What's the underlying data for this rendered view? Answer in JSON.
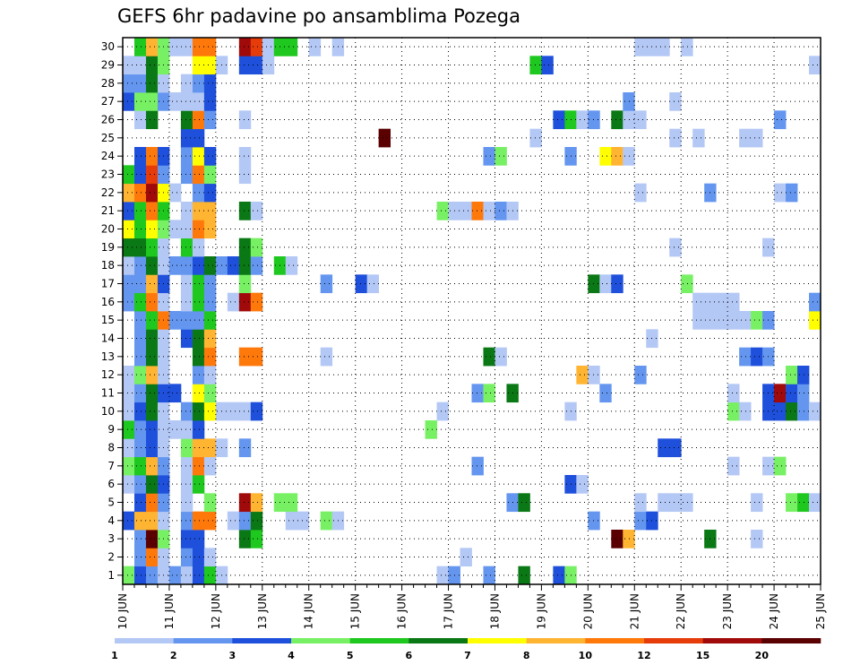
{
  "chart_data": {
    "type": "heatmap",
    "title": "GEFS 6hr padavine po ansamblima Pozega",
    "xlabel": "",
    "ylabel": "",
    "x_ticks": [
      "10 JUN",
      "11 JUN",
      "12 JUN",
      "13 JUN",
      "14 JUN",
      "15 JUN",
      "16 JUN",
      "17 JUN",
      "18 JUN",
      "19 JUN",
      "20 JUN",
      "21 JUN",
      "22 JUN",
      "23 JUN",
      "24 JUN",
      "25 JUN"
    ],
    "y_ticks": [
      "1",
      "2",
      "3",
      "4",
      "5",
      "6",
      "7",
      "8",
      "9",
      "10",
      "11",
      "12",
      "13",
      "14",
      "15",
      "16",
      "17",
      "18",
      "19",
      "20",
      "21",
      "22",
      "23",
      "24",
      "25",
      "26",
      "27",
      "28",
      "29",
      "30"
    ],
    "xlim": [
      0,
      60
    ],
    "ylim": [
      0.5,
      30.5
    ],
    "time_step": "6hr",
    "grid": "dotted",
    "colorbar": {
      "placement": "bottom",
      "labels": [
        "1",
        "2",
        "3",
        "4",
        "5",
        "6",
        "7",
        "8",
        "10",
        "12",
        "15",
        "20"
      ],
      "colors": [
        "#b4c8f5",
        "#6496f0",
        "#1e50dc",
        "#78f064",
        "#1ec81e",
        "#0a7814",
        "#ffff00",
        "#ffb432",
        "#ff780a",
        "#e63c0a",
        "#a00a0a",
        "#5a0000"
      ]
    },
    "cells": [
      [
        1,
        0,
        4
      ],
      [
        1,
        1,
        3
      ],
      [
        1,
        2,
        2
      ],
      [
        1,
        3,
        1
      ],
      [
        1,
        4,
        2
      ],
      [
        1,
        5,
        1
      ],
      [
        1,
        6,
        3
      ],
      [
        1,
        7,
        5
      ],
      [
        1,
        8,
        1
      ],
      [
        1,
        27,
        1
      ],
      [
        1,
        28,
        2
      ],
      [
        1,
        31,
        2
      ],
      [
        1,
        34,
        6
      ],
      [
        1,
        37,
        3
      ],
      [
        1,
        38,
        4
      ],
      [
        2,
        1,
        2
      ],
      [
        2,
        2,
        9
      ],
      [
        2,
        3,
        1
      ],
      [
        2,
        5,
        2
      ],
      [
        2,
        6,
        3
      ],
      [
        2,
        7,
        1
      ],
      [
        2,
        29,
        1
      ],
      [
        3,
        1,
        2
      ],
      [
        3,
        2,
        12
      ],
      [
        3,
        3,
        4
      ],
      [
        3,
        5,
        3
      ],
      [
        3,
        6,
        3
      ],
      [
        3,
        10,
        6
      ],
      [
        3,
        11,
        5
      ],
      [
        3,
        42,
        12
      ],
      [
        3,
        43,
        8
      ],
      [
        3,
        50,
        6
      ],
      [
        3,
        54,
        1
      ],
      [
        4,
        0,
        3
      ],
      [
        4,
        1,
        8
      ],
      [
        4,
        2,
        8
      ],
      [
        4,
        3,
        1
      ],
      [
        4,
        5,
        2
      ],
      [
        4,
        6,
        9
      ],
      [
        4,
        7,
        9
      ],
      [
        4,
        9,
        1
      ],
      [
        4,
        10,
        2
      ],
      [
        4,
        11,
        6
      ],
      [
        4,
        14,
        1
      ],
      [
        4,
        15,
        1
      ],
      [
        4,
        17,
        4
      ],
      [
        4,
        18,
        1
      ],
      [
        4,
        40,
        2
      ],
      [
        4,
        44,
        2
      ],
      [
        4,
        45,
        3
      ],
      [
        5,
        1,
        3
      ],
      [
        5,
        2,
        9
      ],
      [
        5,
        3,
        2
      ],
      [
        5,
        5,
        1
      ],
      [
        5,
        7,
        4
      ],
      [
        5,
        10,
        11
      ],
      [
        5,
        11,
        8
      ],
      [
        5,
        13,
        4
      ],
      [
        5,
        14,
        4
      ],
      [
        5,
        33,
        2
      ],
      [
        5,
        34,
        6
      ],
      [
        5,
        44,
        1
      ],
      [
        5,
        46,
        1
      ],
      [
        5,
        47,
        1
      ],
      [
        5,
        48,
        1
      ],
      [
        5,
        54,
        1
      ],
      [
        5,
        57,
        4
      ],
      [
        5,
        58,
        5
      ],
      [
        5,
        59,
        1
      ],
      [
        6,
        0,
        1
      ],
      [
        6,
        1,
        2
      ],
      [
        6,
        2,
        6
      ],
      [
        6,
        3,
        3
      ],
      [
        6,
        5,
        1
      ],
      [
        6,
        6,
        5
      ],
      [
        6,
        38,
        3
      ],
      [
        6,
        39,
        1
      ],
      [
        7,
        0,
        4
      ],
      [
        7,
        1,
        5
      ],
      [
        7,
        2,
        8
      ],
      [
        7,
        3,
        2
      ],
      [
        7,
        5,
        1
      ],
      [
        7,
        6,
        9
      ],
      [
        7,
        7,
        1
      ],
      [
        7,
        30,
        2
      ],
      [
        7,
        52,
        1
      ],
      [
        7,
        55,
        1
      ],
      [
        7,
        56,
        4
      ],
      [
        8,
        0,
        1
      ],
      [
        8,
        1,
        2
      ],
      [
        8,
        2,
        3
      ],
      [
        8,
        3,
        1
      ],
      [
        8,
        5,
        4
      ],
      [
        8,
        6,
        8
      ],
      [
        8,
        7,
        8
      ],
      [
        8,
        8,
        1
      ],
      [
        8,
        10,
        2
      ],
      [
        8,
        46,
        3
      ],
      [
        8,
        47,
        3
      ],
      [
        9,
        0,
        5
      ],
      [
        9,
        1,
        2
      ],
      [
        9,
        2,
        3
      ],
      [
        9,
        3,
        1
      ],
      [
        9,
        4,
        1
      ],
      [
        9,
        5,
        1
      ],
      [
        9,
        6,
        3
      ],
      [
        9,
        26,
        4
      ],
      [
        10,
        0,
        1
      ],
      [
        10,
        1,
        3
      ],
      [
        10,
        2,
        6
      ],
      [
        10,
        3,
        1
      ],
      [
        10,
        5,
        2
      ],
      [
        10,
        6,
        6
      ],
      [
        10,
        7,
        7
      ],
      [
        10,
        8,
        1
      ],
      [
        10,
        9,
        1
      ],
      [
        10,
        10,
        1
      ],
      [
        10,
        11,
        3
      ],
      [
        10,
        27,
        1
      ],
      [
        10,
        38,
        1
      ],
      [
        10,
        52,
        4
      ],
      [
        10,
        53,
        1
      ],
      [
        10,
        55,
        3
      ],
      [
        10,
        56,
        3
      ],
      [
        10,
        57,
        6
      ],
      [
        10,
        58,
        2
      ],
      [
        10,
        59,
        1
      ],
      [
        11,
        0,
        1
      ],
      [
        11,
        1,
        2
      ],
      [
        11,
        2,
        6
      ],
      [
        11,
        3,
        3
      ],
      [
        11,
        4,
        3
      ],
      [
        11,
        6,
        7
      ],
      [
        11,
        7,
        4
      ],
      [
        11,
        30,
        2
      ],
      [
        11,
        31,
        4
      ],
      [
        11,
        33,
        6
      ],
      [
        11,
        41,
        2
      ],
      [
        11,
        52,
        1
      ],
      [
        11,
        55,
        3
      ],
      [
        11,
        56,
        11
      ],
      [
        11,
        57,
        3
      ],
      [
        11,
        58,
        2
      ],
      [
        12,
        0,
        1
      ],
      [
        12,
        1,
        4
      ],
      [
        12,
        2,
        8
      ],
      [
        12,
        3,
        1
      ],
      [
        12,
        6,
        2
      ],
      [
        12,
        7,
        1
      ],
      [
        12,
        39,
        8
      ],
      [
        12,
        40,
        1
      ],
      [
        12,
        44,
        2
      ],
      [
        12,
        57,
        4
      ],
      [
        12,
        58,
        3
      ],
      [
        13,
        1,
        2
      ],
      [
        13,
        2,
        6
      ],
      [
        13,
        3,
        1
      ],
      [
        13,
        6,
        6
      ],
      [
        13,
        7,
        9
      ],
      [
        13,
        10,
        9
      ],
      [
        13,
        11,
        9
      ],
      [
        13,
        17,
        1
      ],
      [
        13,
        31,
        6
      ],
      [
        13,
        32,
        1
      ],
      [
        13,
        53,
        2
      ],
      [
        13,
        54,
        3
      ],
      [
        13,
        55,
        2
      ],
      [
        14,
        1,
        2
      ],
      [
        14,
        2,
        6
      ],
      [
        14,
        3,
        1
      ],
      [
        14,
        5,
        3
      ],
      [
        14,
        6,
        6
      ],
      [
        14,
        7,
        8
      ],
      [
        14,
        45,
        1
      ],
      [
        15,
        1,
        2
      ],
      [
        15,
        2,
        5
      ],
      [
        15,
        3,
        9
      ],
      [
        15,
        4,
        2
      ],
      [
        15,
        5,
        2
      ],
      [
        15,
        6,
        2
      ],
      [
        15,
        7,
        5
      ],
      [
        15,
        49,
        1
      ],
      [
        15,
        50,
        1
      ],
      [
        15,
        51,
        1
      ],
      [
        15,
        52,
        1
      ],
      [
        15,
        53,
        1
      ],
      [
        15,
        54,
        4
      ],
      [
        15,
        55,
        2
      ],
      [
        15,
        59,
        7
      ],
      [
        16,
        0,
        2
      ],
      [
        16,
        1,
        5
      ],
      [
        16,
        2,
        9
      ],
      [
        16,
        3,
        1
      ],
      [
        16,
        5,
        1
      ],
      [
        16,
        6,
        5
      ],
      [
        16,
        7,
        2
      ],
      [
        16,
        9,
        1
      ],
      [
        16,
        10,
        11
      ],
      [
        16,
        11,
        9
      ],
      [
        16,
        49,
        1
      ],
      [
        16,
        50,
        1
      ],
      [
        16,
        51,
        1
      ],
      [
        16,
        52,
        1
      ],
      [
        16,
        59,
        2
      ],
      [
        17,
        0,
        2
      ],
      [
        17,
        1,
        2
      ],
      [
        17,
        2,
        8
      ],
      [
        17,
        3,
        3
      ],
      [
        17,
        5,
        1
      ],
      [
        17,
        6,
        5
      ],
      [
        17,
        7,
        2
      ],
      [
        17,
        10,
        4
      ],
      [
        17,
        17,
        2
      ],
      [
        17,
        20,
        3
      ],
      [
        17,
        21,
        1
      ],
      [
        17,
        40,
        6
      ],
      [
        17,
        41,
        1
      ],
      [
        17,
        42,
        3
      ],
      [
        17,
        48,
        4
      ],
      [
        18,
        0,
        1
      ],
      [
        18,
        1,
        2
      ],
      [
        18,
        2,
        6
      ],
      [
        18,
        3,
        1
      ],
      [
        18,
        4,
        2
      ],
      [
        18,
        5,
        2
      ],
      [
        18,
        6,
        3
      ],
      [
        18,
        7,
        6
      ],
      [
        18,
        8,
        2
      ],
      [
        18,
        9,
        3
      ],
      [
        18,
        10,
        6
      ],
      [
        18,
        11,
        2
      ],
      [
        18,
        13,
        5
      ],
      [
        18,
        14,
        1
      ],
      [
        19,
        0,
        6
      ],
      [
        19,
        1,
        6
      ],
      [
        19,
        2,
        5
      ],
      [
        19,
        3,
        1
      ],
      [
        19,
        5,
        5
      ],
      [
        19,
        6,
        1
      ],
      [
        19,
        10,
        6
      ],
      [
        19,
        11,
        4
      ],
      [
        19,
        47,
        1
      ],
      [
        19,
        55,
        1
      ],
      [
        20,
        0,
        7
      ],
      [
        20,
        1,
        5
      ],
      [
        20,
        2,
        7
      ],
      [
        20,
        3,
        4
      ],
      [
        20,
        4,
        1
      ],
      [
        20,
        5,
        1
      ],
      [
        20,
        6,
        9
      ],
      [
        20,
        7,
        8
      ],
      [
        21,
        0,
        3
      ],
      [
        21,
        1,
        5
      ],
      [
        21,
        2,
        9
      ],
      [
        21,
        3,
        5
      ],
      [
        21,
        5,
        1
      ],
      [
        21,
        6,
        8
      ],
      [
        21,
        7,
        8
      ],
      [
        21,
        10,
        6
      ],
      [
        21,
        11,
        1
      ],
      [
        21,
        27,
        4
      ],
      [
        21,
        28,
        1
      ],
      [
        21,
        29,
        1
      ],
      [
        21,
        30,
        9
      ],
      [
        21,
        31,
        1
      ],
      [
        21,
        32,
        2
      ],
      [
        21,
        33,
        1
      ],
      [
        22,
        0,
        8
      ],
      [
        22,
        1,
        9
      ],
      [
        22,
        2,
        11
      ],
      [
        22,
        3,
        7
      ],
      [
        22,
        4,
        1
      ],
      [
        22,
        6,
        2
      ],
      [
        22,
        7,
        3
      ],
      [
        22,
        44,
        1
      ],
      [
        22,
        50,
        2
      ],
      [
        22,
        56,
        1
      ],
      [
        22,
        57,
        2
      ],
      [
        23,
        0,
        5
      ],
      [
        23,
        1,
        3
      ],
      [
        23,
        2,
        10
      ],
      [
        23,
        3,
        2
      ],
      [
        23,
        5,
        2
      ],
      [
        23,
        6,
        9
      ],
      [
        23,
        7,
        4
      ],
      [
        23,
        10,
        1
      ],
      [
        24,
        1,
        3
      ],
      [
        24,
        2,
        9
      ],
      [
        24,
        3,
        3
      ],
      [
        24,
        5,
        2
      ],
      [
        24,
        6,
        7
      ],
      [
        24,
        7,
        3
      ],
      [
        24,
        10,
        1
      ],
      [
        24,
        31,
        2
      ],
      [
        24,
        32,
        4
      ],
      [
        24,
        38,
        2
      ],
      [
        24,
        41,
        7
      ],
      [
        24,
        42,
        8
      ],
      [
        24,
        43,
        1
      ],
      [
        25,
        5,
        3
      ],
      [
        25,
        6,
        3
      ],
      [
        25,
        22,
        12
      ],
      [
        25,
        35,
        1
      ],
      [
        25,
        47,
        1
      ],
      [
        25,
        49,
        1
      ],
      [
        25,
        53,
        1
      ],
      [
        25,
        54,
        1
      ],
      [
        26,
        1,
        1
      ],
      [
        26,
        2,
        6
      ],
      [
        26,
        5,
        6
      ],
      [
        26,
        6,
        9
      ],
      [
        26,
        7,
        2
      ],
      [
        26,
        10,
        1
      ],
      [
        26,
        37,
        3
      ],
      [
        26,
        38,
        5
      ],
      [
        26,
        39,
        1
      ],
      [
        26,
        40,
        2
      ],
      [
        26,
        42,
        6
      ],
      [
        26,
        43,
        1
      ],
      [
        26,
        44,
        1
      ],
      [
        26,
        56,
        2
      ],
      [
        27,
        0,
        3
      ],
      [
        27,
        1,
        4
      ],
      [
        27,
        2,
        4
      ],
      [
        27,
        3,
        2
      ],
      [
        27,
        4,
        1
      ],
      [
        27,
        5,
        1
      ],
      [
        27,
        6,
        1
      ],
      [
        27,
        7,
        3
      ],
      [
        27,
        43,
        2
      ],
      [
        27,
        47,
        1
      ],
      [
        28,
        0,
        2
      ],
      [
        28,
        1,
        2
      ],
      [
        28,
        2,
        6
      ],
      [
        28,
        3,
        1
      ],
      [
        28,
        5,
        1
      ],
      [
        28,
        6,
        2
      ],
      [
        28,
        7,
        3
      ],
      [
        29,
        0,
        1
      ],
      [
        29,
        1,
        1
      ],
      [
        29,
        2,
        6
      ],
      [
        29,
        3,
        4
      ],
      [
        29,
        6,
        7
      ],
      [
        29,
        7,
        7
      ],
      [
        29,
        8,
        1
      ],
      [
        29,
        10,
        3
      ],
      [
        29,
        11,
        3
      ],
      [
        29,
        12,
        1
      ],
      [
        29,
        35,
        5
      ],
      [
        29,
        36,
        3
      ],
      [
        29,
        59,
        1
      ],
      [
        30,
        1,
        5
      ],
      [
        30,
        2,
        8
      ],
      [
        30,
        3,
        4
      ],
      [
        30,
        4,
        1
      ],
      [
        30,
        5,
        1
      ],
      [
        30,
        6,
        9
      ],
      [
        30,
        7,
        9
      ],
      [
        30,
        10,
        11
      ],
      [
        30,
        11,
        10
      ],
      [
        30,
        12,
        1
      ],
      [
        30,
        13,
        5
      ],
      [
        30,
        14,
        5
      ],
      [
        30,
        16,
        1
      ],
      [
        30,
        18,
        1
      ],
      [
        30,
        44,
        1
      ],
      [
        30,
        45,
        1
      ],
      [
        30,
        46,
        1
      ],
      [
        30,
        48,
        1
      ]
    ]
  }
}
